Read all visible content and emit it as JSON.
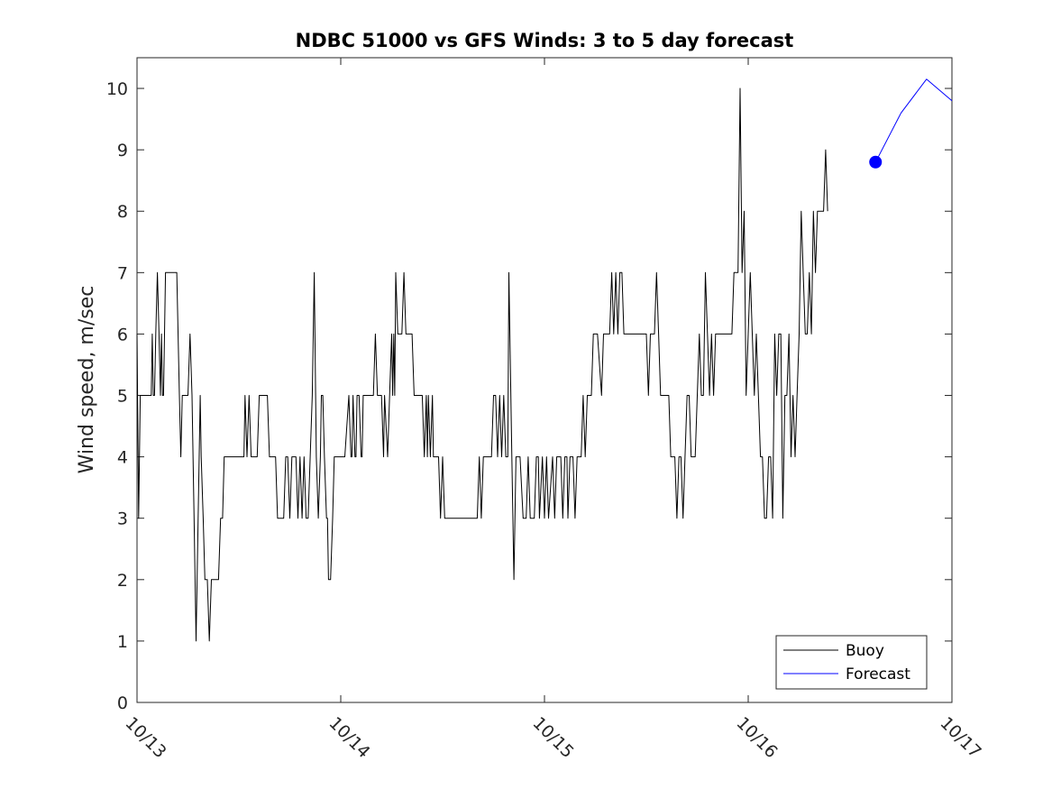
{
  "chart_data": {
    "type": "line",
    "title": "NDBC 51000 vs GFS Winds: 3 to 5 day forecast",
    "xlabel": "",
    "ylabel": "Wind speed, m/sec",
    "xlim": [
      0,
      4
    ],
    "ylim": [
      0,
      10.5
    ],
    "x_ticks": [
      0,
      1,
      2,
      3,
      4
    ],
    "x_tick_labels": [
      "10/13",
      "10/14",
      "10/15",
      "10/16",
      "10/17"
    ],
    "y_ticks": [
      0,
      1,
      2,
      3,
      4,
      5,
      6,
      7,
      8,
      9,
      10
    ],
    "y_tick_labels": [
      "0",
      "1",
      "2",
      "3",
      "4",
      "5",
      "6",
      "7",
      "8",
      "9",
      "10"
    ],
    "x_units": "days since 10/13",
    "legend_position": "bottom-right",
    "series": [
      {
        "name": "Buoy",
        "color": "#000000",
        "points": [
          [
            0.0,
            6
          ],
          [
            0.008,
            3
          ],
          [
            0.016,
            5
          ],
          [
            0.04,
            5
          ],
          [
            0.05,
            5
          ],
          [
            0.07,
            5
          ],
          [
            0.075,
            6
          ],
          [
            0.08,
            5
          ],
          [
            0.086,
            5
          ],
          [
            0.092,
            6
          ],
          [
            0.1,
            7
          ],
          [
            0.108,
            6
          ],
          [
            0.115,
            5
          ],
          [
            0.12,
            6
          ],
          [
            0.125,
            5
          ],
          [
            0.13,
            5
          ],
          [
            0.14,
            7
          ],
          [
            0.18,
            7
          ],
          [
            0.195,
            7
          ],
          [
            0.208,
            5
          ],
          [
            0.215,
            4
          ],
          [
            0.222,
            5
          ],
          [
            0.25,
            5
          ],
          [
            0.26,
            6
          ],
          [
            0.27,
            5
          ],
          [
            0.28,
            3
          ],
          [
            0.29,
            1
          ],
          [
            0.3,
            3
          ],
          [
            0.31,
            5
          ],
          [
            0.315,
            4
          ],
          [
            0.325,
            3
          ],
          [
            0.333,
            2
          ],
          [
            0.345,
            2
          ],
          [
            0.355,
            1
          ],
          [
            0.365,
            2
          ],
          [
            0.4,
            2
          ],
          [
            0.41,
            3
          ],
          [
            0.42,
            3
          ],
          [
            0.428,
            4
          ],
          [
            0.45,
            4
          ],
          [
            0.52,
            4
          ],
          [
            0.525,
            4
          ],
          [
            0.53,
            5
          ],
          [
            0.54,
            4
          ],
          [
            0.55,
            5
          ],
          [
            0.56,
            4
          ],
          [
            0.59,
            4
          ],
          [
            0.6,
            5
          ],
          [
            0.64,
            5
          ],
          [
            0.65,
            4
          ],
          [
            0.68,
            4
          ],
          [
            0.69,
            3
          ],
          [
            0.72,
            3
          ],
          [
            0.73,
            4
          ],
          [
            0.74,
            4
          ],
          [
            0.75,
            3
          ],
          [
            0.76,
            4
          ],
          [
            0.78,
            4
          ],
          [
            0.79,
            3
          ],
          [
            0.8,
            4
          ],
          [
            0.81,
            3
          ],
          [
            0.82,
            4
          ],
          [
            0.83,
            3
          ],
          [
            0.84,
            3
          ],
          [
            0.85,
            4
          ],
          [
            0.86,
            5
          ],
          [
            0.87,
            7
          ],
          [
            0.88,
            4
          ],
          [
            0.89,
            3
          ],
          [
            0.9,
            4
          ],
          [
            0.905,
            5
          ],
          [
            0.912,
            5
          ],
          [
            0.92,
            4
          ],
          [
            0.93,
            3
          ],
          [
            0.935,
            3
          ],
          [
            0.94,
            2
          ],
          [
            0.95,
            2
          ],
          [
            0.96,
            3
          ],
          [
            0.968,
            4
          ],
          [
            1.0,
            4
          ],
          [
            1.02,
            4
          ],
          [
            1.04,
            5
          ],
          [
            1.05,
            4
          ],
          [
            1.055,
            4
          ],
          [
            1.06,
            5
          ],
          [
            1.07,
            4
          ],
          [
            1.075,
            4
          ],
          [
            1.08,
            5
          ],
          [
            1.09,
            5
          ],
          [
            1.1,
            4
          ],
          [
            1.105,
            4
          ],
          [
            1.11,
            5
          ],
          [
            1.14,
            5
          ],
          [
            1.16,
            5
          ],
          [
            1.17,
            6
          ],
          [
            1.18,
            5
          ],
          [
            1.2,
            5
          ],
          [
            1.21,
            4
          ],
          [
            1.215,
            5
          ],
          [
            1.23,
            4
          ],
          [
            1.24,
            5
          ],
          [
            1.25,
            6
          ],
          [
            1.255,
            5
          ],
          [
            1.26,
            6
          ],
          [
            1.265,
            5
          ],
          [
            1.27,
            7
          ],
          [
            1.28,
            6
          ],
          [
            1.29,
            6
          ],
          [
            1.3,
            6
          ],
          [
            1.31,
            7
          ],
          [
            1.32,
            6
          ],
          [
            1.35,
            6
          ],
          [
            1.36,
            5
          ],
          [
            1.4,
            5
          ],
          [
            1.41,
            4
          ],
          [
            1.42,
            5
          ],
          [
            1.425,
            4
          ],
          [
            1.43,
            5
          ],
          [
            1.44,
            4
          ],
          [
            1.45,
            5
          ],
          [
            1.455,
            4
          ],
          [
            1.48,
            4
          ],
          [
            1.49,
            3
          ],
          [
            1.5,
            4
          ],
          [
            1.51,
            3
          ],
          [
            1.52,
            3
          ],
          [
            1.66,
            3
          ],
          [
            1.67,
            3
          ],
          [
            1.68,
            4
          ],
          [
            1.69,
            3
          ],
          [
            1.7,
            4
          ],
          [
            1.74,
            4
          ],
          [
            1.75,
            5
          ],
          [
            1.76,
            5
          ],
          [
            1.77,
            4
          ],
          [
            1.78,
            5
          ],
          [
            1.79,
            4
          ],
          [
            1.8,
            5
          ],
          [
            1.81,
            4
          ],
          [
            1.82,
            4
          ],
          [
            1.825,
            7
          ],
          [
            1.84,
            4
          ],
          [
            1.85,
            2
          ],
          [
            1.86,
            4
          ],
          [
            1.88,
            4
          ],
          [
            1.895,
            3
          ],
          [
            1.91,
            3
          ],
          [
            1.92,
            4
          ],
          [
            1.93,
            3
          ],
          [
            1.95,
            3
          ],
          [
            1.96,
            4
          ],
          [
            1.97,
            4
          ],
          [
            1.975,
            3
          ],
          [
            1.99,
            4
          ],
          [
            2.0,
            3
          ],
          [
            2.01,
            4
          ],
          [
            2.02,
            3
          ],
          [
            2.04,
            4
          ],
          [
            2.05,
            3
          ],
          [
            2.06,
            4
          ],
          [
            2.08,
            4
          ],
          [
            2.09,
            3
          ],
          [
            2.1,
            4
          ],
          [
            2.11,
            4
          ],
          [
            2.115,
            3
          ],
          [
            2.125,
            4
          ],
          [
            2.14,
            4
          ],
          [
            2.15,
            3
          ],
          [
            2.16,
            4
          ],
          [
            2.17,
            4
          ],
          [
            2.18,
            4
          ],
          [
            2.19,
            5
          ],
          [
            2.2,
            4
          ],
          [
            2.21,
            5
          ],
          [
            2.22,
            5
          ],
          [
            2.23,
            5
          ],
          [
            2.24,
            6
          ],
          [
            2.26,
            6
          ],
          [
            2.28,
            5
          ],
          [
            2.29,
            6
          ],
          [
            2.32,
            6
          ],
          [
            2.33,
            7
          ],
          [
            2.34,
            6
          ],
          [
            2.35,
            7
          ],
          [
            2.36,
            6
          ],
          [
            2.37,
            7
          ],
          [
            2.38,
            7
          ],
          [
            2.39,
            6
          ],
          [
            2.46,
            6
          ],
          [
            2.49,
            6
          ],
          [
            2.5,
            6
          ],
          [
            2.51,
            5
          ],
          [
            2.52,
            6
          ],
          [
            2.54,
            6
          ],
          [
            2.55,
            7
          ],
          [
            2.56,
            6
          ],
          [
            2.57,
            5
          ],
          [
            2.58,
            5
          ],
          [
            2.6,
            5
          ],
          [
            2.61,
            5
          ],
          [
            2.62,
            4
          ],
          [
            2.64,
            4
          ],
          [
            2.65,
            3
          ],
          [
            2.66,
            4
          ],
          [
            2.67,
            4
          ],
          [
            2.68,
            3
          ],
          [
            2.69,
            4
          ],
          [
            2.7,
            5
          ],
          [
            2.71,
            5
          ],
          [
            2.72,
            4
          ],
          [
            2.73,
            4
          ],
          [
            2.74,
            4
          ],
          [
            2.75,
            5
          ],
          [
            2.76,
            6
          ],
          [
            2.77,
            5
          ],
          [
            2.78,
            5
          ],
          [
            2.79,
            7
          ],
          [
            2.8,
            6
          ],
          [
            2.81,
            5
          ],
          [
            2.82,
            6
          ],
          [
            2.83,
            5
          ],
          [
            2.84,
            6
          ],
          [
            2.9,
            6
          ],
          [
            2.92,
            6
          ],
          [
            2.93,
            7
          ],
          [
            2.95,
            7
          ],
          [
            2.96,
            10
          ],
          [
            2.97,
            7
          ],
          [
            2.98,
            8
          ],
          [
            2.99,
            5
          ],
          [
            3.0,
            6
          ],
          [
            3.01,
            7
          ],
          [
            3.02,
            6
          ],
          [
            3.03,
            5
          ],
          [
            3.04,
            6
          ],
          [
            3.05,
            5
          ],
          [
            3.06,
            4
          ],
          [
            3.07,
            4
          ],
          [
            3.08,
            3
          ],
          [
            3.09,
            3
          ],
          [
            3.1,
            4
          ],
          [
            3.11,
            4
          ],
          [
            3.12,
            3
          ],
          [
            3.13,
            6
          ],
          [
            3.14,
            5
          ],
          [
            3.15,
            6
          ],
          [
            3.16,
            6
          ],
          [
            3.17,
            3
          ],
          [
            3.18,
            5
          ],
          [
            3.19,
            5
          ],
          [
            3.2,
            6
          ],
          [
            3.21,
            4
          ],
          [
            3.22,
            5
          ],
          [
            3.23,
            4
          ],
          [
            3.24,
            5
          ],
          [
            3.25,
            6
          ],
          [
            3.26,
            8
          ],
          [
            3.27,
            7
          ],
          [
            3.28,
            6
          ],
          [
            3.29,
            6
          ],
          [
            3.3,
            7
          ],
          [
            3.31,
            6
          ],
          [
            3.32,
            8
          ],
          [
            3.33,
            7
          ],
          [
            3.34,
            8
          ],
          [
            3.36,
            8
          ],
          [
            3.37,
            8
          ],
          [
            3.38,
            9
          ],
          [
            3.39,
            8
          ]
        ]
      },
      {
        "name": "Forecast",
        "color": "#0000ff",
        "points": [
          [
            3.625,
            8.8
          ],
          [
            3.75,
            9.6
          ],
          [
            3.875,
            10.15
          ],
          [
            4.0,
            9.8
          ]
        ],
        "marker": {
          "x": 3.625,
          "y": 8.8
        }
      }
    ]
  }
}
